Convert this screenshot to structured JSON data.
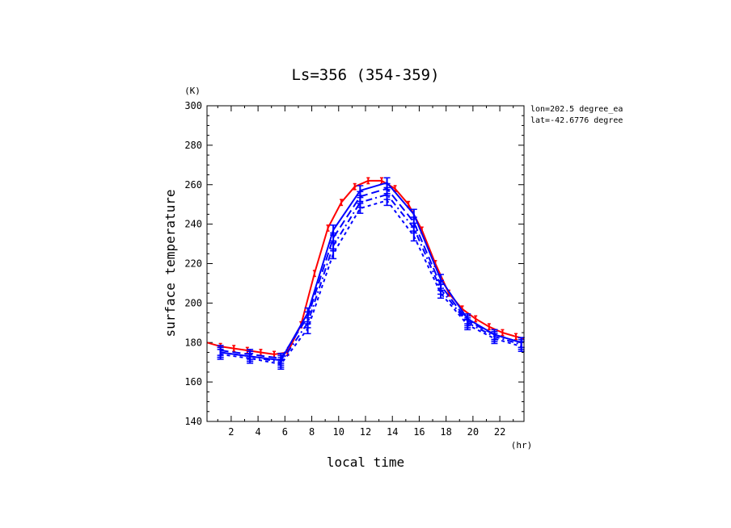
{
  "chart_data": {
    "type": "line",
    "title": "Ls=356 (354-359)",
    "xlabel": "local time",
    "ylabel": "surface temperature",
    "x_unit": "(hr)",
    "y_unit": "(K)",
    "xlim": [
      0.2,
      23.8
    ],
    "ylim": [
      140,
      300
    ],
    "x_ticks": [
      2,
      4,
      6,
      8,
      10,
      12,
      14,
      16,
      18,
      20,
      22
    ],
    "y_ticks": [
      140,
      160,
      180,
      200,
      220,
      240,
      260,
      280,
      300
    ],
    "annotations": [
      "lon=202.5 degree_ea",
      "lat=-42.6776 degree"
    ],
    "series": [
      {
        "name": "red solid",
        "color": "#ff0000",
        "dash": "solid",
        "x": [
          0.2,
          1.2,
          2.2,
          3.2,
          4.2,
          5.2,
          6.2,
          7.2,
          8.2,
          9.2,
          10.2,
          11.2,
          12.2,
          13.2,
          14.2,
          15.2,
          16.2,
          17.2,
          18.2,
          19.2,
          20.2,
          21.2,
          22.2,
          23.2,
          23.8
        ],
        "y": [
          180,
          178,
          177,
          176,
          175,
          174,
          175,
          189,
          215,
          238,
          251,
          259,
          262,
          262,
          258,
          250,
          237,
          220,
          205,
          197,
          192,
          188,
          185,
          183,
          182
        ],
        "error_bars": true
      },
      {
        "name": "blue solid",
        "color": "#0000ff",
        "dash": "solid",
        "x": [
          1.2,
          3.4,
          5.7,
          7.7,
          9.6,
          11.6,
          13.6,
          15.6,
          17.6,
          19.6,
          21.6,
          23.6
        ],
        "y": [
          175,
          173,
          171,
          195,
          237,
          257,
          261,
          245,
          212,
          192,
          184,
          180
        ],
        "error_bars": true
      },
      {
        "name": "blue long-dash",
        "color": "#0000ff",
        "dash": "10 5",
        "x": [
          1.2,
          3.4,
          5.7,
          7.7,
          9.6,
          11.6,
          13.6,
          15.6,
          17.6,
          19.6,
          21.6,
          23.6
        ],
        "y": [
          176,
          174,
          172,
          193,
          233,
          254,
          258,
          241,
          209,
          191,
          184,
          180
        ],
        "error_bars": true
      },
      {
        "name": "blue dash-dot",
        "color": "#0000ff",
        "dash": "8 4 2 4",
        "x": [
          1.2,
          3.4,
          5.7,
          7.7,
          9.6,
          11.6,
          13.6,
          15.6,
          17.6,
          19.6,
          21.6,
          23.6
        ],
        "y": [
          175,
          173,
          170,
          190,
          229,
          251,
          255,
          238,
          207,
          190,
          183,
          179
        ],
        "error_bars": true
      },
      {
        "name": "blue short-dash",
        "color": "#0000ff",
        "dash": "4 4",
        "x": [
          1.2,
          3.4,
          5.7,
          7.7,
          9.6,
          11.6,
          13.6,
          15.6,
          17.6,
          19.6,
          21.6,
          23.6
        ],
        "y": [
          174,
          172,
          169,
          187,
          225,
          248,
          252,
          234,
          205,
          189,
          182,
          178
        ],
        "error_bars": true
      }
    ]
  }
}
